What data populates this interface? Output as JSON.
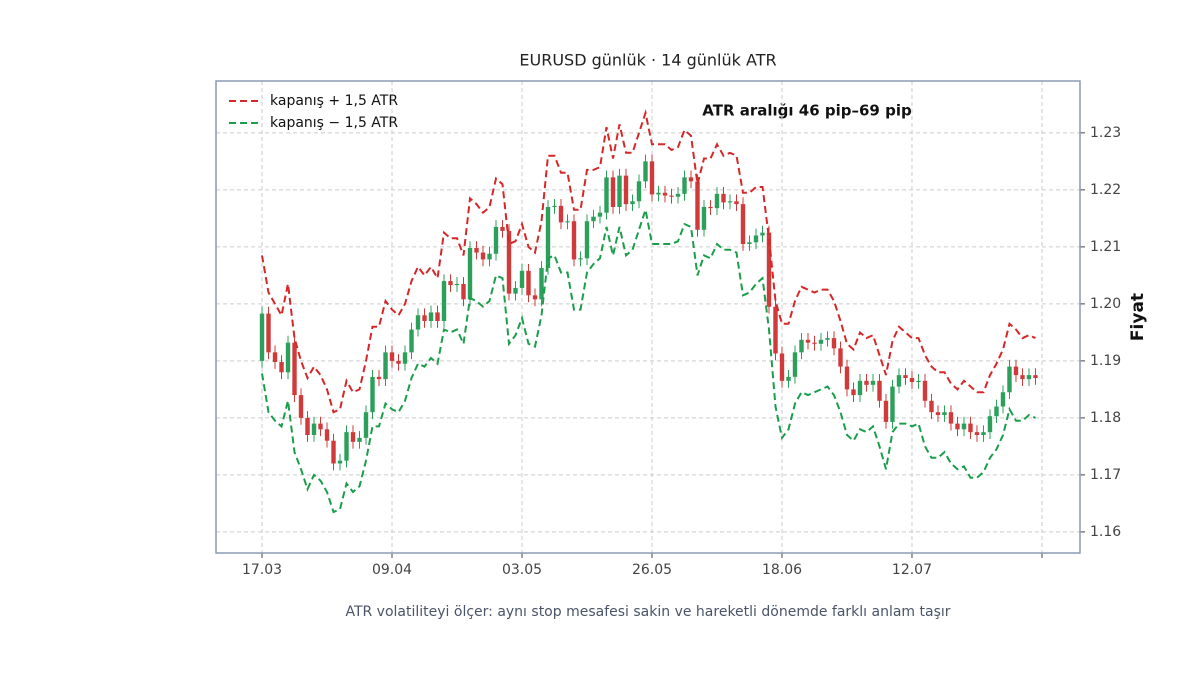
{
  "chart_data": {
    "type": "candlestick",
    "title": "EURUSD günlük · 14 günlük ATR",
    "ylabel": "Fiyat",
    "annotation": "ATR aralığı 46 pip–69 pip",
    "caption": "ATR volatiliteyi ölçer: aynı stop mesafesi sakin ve hareketli dönemde farklı anlam taşır",
    "up_color": "#2ca05a",
    "down_color": "#d03a3a",
    "grid": true,
    "legend": "upper left",
    "categories": [
      "17.03",
      null,
      null,
      null,
      null,
      null,
      null,
      null,
      null,
      null,
      null,
      null,
      null,
      null,
      null,
      null,
      null,
      null,
      null,
      null,
      "09.04",
      null,
      null,
      null,
      null,
      null,
      null,
      null,
      null,
      null,
      null,
      null,
      null,
      null,
      null,
      null,
      null,
      null,
      null,
      null,
      "03.05",
      null,
      null,
      null,
      null,
      null,
      null,
      null,
      null,
      null,
      null,
      null,
      null,
      null,
      null,
      null,
      null,
      null,
      null,
      null,
      "26.05",
      null,
      null,
      null,
      null,
      null,
      null,
      null,
      null,
      null,
      null,
      null,
      null,
      null,
      null,
      null,
      null,
      null,
      null,
      null,
      "18.06",
      null,
      null,
      null,
      null,
      null,
      null,
      null,
      null,
      null,
      null,
      null,
      null,
      null,
      null,
      null,
      null,
      null,
      null,
      null,
      "12.07",
      null,
      null,
      null,
      null,
      null,
      null,
      null,
      null,
      null,
      null,
      null,
      null,
      null,
      null,
      null,
      null,
      null,
      null,
      null
    ],
    "xlim": [
      -7.08,
      125.85
    ],
    "xticks": [
      0,
      20,
      40,
      60,
      80,
      100,
      120
    ],
    "ylim": [
      1.1563,
      1.2391
    ],
    "yticks": [
      1.16,
      1.17,
      1.18,
      1.19,
      {
        "value": 1.2,
        "label": "1.20"
      },
      1.21,
      1.22,
      1.23
    ],
    "open": [
      1.19,
      1.1983,
      1.1915,
      1.1898,
      1.188,
      1.1932,
      1.184,
      1.18,
      1.177,
      1.179,
      1.178,
      1.176,
      1.172,
      1.1725,
      1.1775,
      1.1758,
      1.1765,
      1.181,
      1.1872,
      1.1868,
      1.1915,
      1.19,
      1.1895,
      1.1915,
      1.1955,
      1.198,
      1.197,
      1.1985,
      1.197,
      1.204,
      1.2033,
      1.2035,
      1.2008,
      1.2098,
      1.209,
      1.2078,
      1.2088,
      1.2135,
      1.2128,
      1.2018,
      1.2028,
      1.2058,
      1.2015,
      1.2008,
      1.2063,
      1.217,
      1.2172,
      1.2143,
      1.2145,
      1.2078,
      1.208,
      1.2145,
      1.2153,
      1.216,
      1.2222,
      1.217,
      1.2225,
      1.2175,
      1.218,
      1.2215,
      1.225,
      1.2192,
      1.2195,
      1.219,
      1.2188,
      1.2193,
      1.2222,
      1.2215,
      1.213,
      1.217,
      1.2168,
      1.2193,
      1.2178,
      1.218,
      1.2175,
      1.2105,
      1.2108,
      1.212,
      1.2125,
      1.1995,
      1.1913,
      1.1865,
      1.1872,
      1.1915,
      1.1937,
      1.1932,
      1.193,
      1.1937,
      1.194,
      1.1922,
      1.189,
      1.185,
      1.184,
      1.1865,
      1.1858,
      1.1865,
      1.183,
      1.1793,
      1.1855,
      1.1875,
      1.187,
      1.1863,
      1.1865,
      1.183,
      1.181,
      1.1805,
      1.181,
      1.179,
      1.178,
      1.179,
      1.1775,
      1.177,
      1.1775,
      1.1803,
      1.182,
      1.1845,
      1.189,
      1.1875,
      1.1868,
      1.1875
    ],
    "high": [
      1.1995,
      1.1995,
      1.1927,
      1.191,
      1.1944,
      1.1944,
      1.1852,
      1.1812,
      1.1802,
      1.1802,
      1.1792,
      1.1772,
      1.1737,
      1.1787,
      1.1787,
      1.1777,
      1.1822,
      1.1884,
      1.1884,
      1.1927,
      1.1927,
      1.1912,
      1.1927,
      1.1967,
      1.1992,
      1.1992,
      1.1997,
      1.1997,
      1.2052,
      1.2052,
      1.2047,
      1.2047,
      1.211,
      1.211,
      1.2102,
      1.21,
      1.2147,
      1.2147,
      1.214,
      1.204,
      1.207,
      1.207,
      1.2027,
      1.2075,
      1.2182,
      1.2184,
      1.2184,
      1.2157,
      1.2157,
      1.2092,
      1.2157,
      1.2165,
      1.2172,
      1.2234,
      1.2234,
      1.2237,
      1.2237,
      1.2192,
      1.2227,
      1.2262,
      1.2262,
      1.2207,
      1.2207,
      1.2202,
      1.2205,
      1.2234,
      1.2234,
      1.2227,
      1.2182,
      1.2182,
      1.2205,
      1.2205,
      1.2192,
      1.2192,
      1.2187,
      1.212,
      1.2132,
      1.2137,
      1.2137,
      1.2007,
      1.1925,
      1.1884,
      1.1927,
      1.1949,
      1.1949,
      1.1944,
      1.1949,
      1.1952,
      1.1952,
      1.1934,
      1.1902,
      1.1862,
      1.1877,
      1.1877,
      1.1877,
      1.1877,
      1.1842,
      1.1867,
      1.1887,
      1.1887,
      1.1882,
      1.1877,
      1.1877,
      1.1842,
      1.1822,
      1.1822,
      1.1822,
      1.1802,
      1.1802,
      1.1802,
      1.1787,
      1.1787,
      1.1815,
      1.1832,
      1.1857,
      1.1902,
      1.1902,
      1.1887,
      1.1887,
      1.1887
    ],
    "low": [
      1.1888,
      1.1903,
      1.1886,
      1.1868,
      1.1868,
      1.1828,
      1.1788,
      1.1758,
      1.1758,
      1.1768,
      1.1748,
      1.1708,
      1.1708,
      1.1713,
      1.1746,
      1.1746,
      1.1753,
      1.1798,
      1.1856,
      1.1856,
      1.1888,
      1.1883,
      1.1883,
      1.1903,
      1.1943,
      1.1958,
      1.1958,
      1.1958,
      1.1958,
      1.2021,
      1.2021,
      1.1996,
      1.1996,
      1.2078,
      1.2066,
      1.2066,
      1.2076,
      1.2116,
      1.2006,
      1.2006,
      1.2016,
      1.2003,
      1.1996,
      1.1996,
      1.2051,
      1.2158,
      1.2131,
      1.2131,
      1.2066,
      1.2066,
      1.2068,
      1.2133,
      1.2141,
      1.2148,
      1.2158,
      1.2158,
      1.2163,
      1.2163,
      1.2168,
      1.2203,
      1.218,
      1.218,
      1.2178,
      1.2176,
      1.2176,
      1.2181,
      1.2203,
      1.2118,
      1.2118,
      1.2156,
      1.2156,
      1.2166,
      1.2166,
      1.2163,
      1.2093,
      1.2093,
      1.2096,
      1.2108,
      1.1983,
      1.1901,
      1.1853,
      1.1853,
      1.186,
      1.1903,
      1.192,
      1.1918,
      1.1918,
      1.1925,
      1.191,
      1.1878,
      1.1838,
      1.1828,
      1.1828,
      1.1846,
      1.1846,
      1.1818,
      1.1781,
      1.1781,
      1.1843,
      1.1858,
      1.1851,
      1.1851,
      1.1818,
      1.1798,
      1.1793,
      1.1793,
      1.1778,
      1.1768,
      1.1768,
      1.1763,
      1.1758,
      1.1758,
      1.1763,
      1.1791,
      1.1808,
      1.1833,
      1.1863,
      1.1856,
      1.1856,
      1.1858
    ],
    "close": [
      1.1983,
      1.1915,
      1.1898,
      1.188,
      1.1932,
      1.184,
      1.18,
      1.177,
      1.179,
      1.178,
      1.176,
      1.172,
      1.1725,
      1.1775,
      1.1758,
      1.1765,
      1.181,
      1.1872,
      1.1868,
      1.1915,
      1.19,
      1.1895,
      1.1915,
      1.1955,
      1.198,
      1.197,
      1.1985,
      1.197,
      1.204,
      1.2033,
      1.2035,
      1.2008,
      1.2098,
      1.209,
      1.2078,
      1.2088,
      1.2135,
      1.2128,
      1.2018,
      1.2028,
      1.2058,
      1.2015,
      1.2008,
      1.2063,
      1.217,
      1.2172,
      1.2143,
      1.2145,
      1.2078,
      1.208,
      1.2145,
      1.2153,
      1.216,
      1.2222,
      1.217,
      1.2225,
      1.2175,
      1.218,
      1.2215,
      1.225,
      1.2192,
      1.2195,
      1.219,
      1.2188,
      1.2193,
      1.2222,
      1.2215,
      1.213,
      1.217,
      1.2168,
      1.2193,
      1.2178,
      1.218,
      1.2175,
      1.2105,
      1.2108,
      1.212,
      1.2125,
      1.1995,
      1.1913,
      1.1865,
      1.1872,
      1.1915,
      1.1937,
      1.1932,
      1.193,
      1.1937,
      1.194,
      1.1922,
      1.189,
      1.185,
      1.184,
      1.1865,
      1.1858,
      1.1865,
      1.183,
      1.1793,
      1.1855,
      1.1875,
      1.187,
      1.1863,
      1.1865,
      1.183,
      1.181,
      1.1805,
      1.181,
      1.179,
      1.178,
      1.179,
      1.1775,
      1.177,
      1.1775,
      1.1803,
      1.182,
      1.1845,
      1.189,
      1.1875,
      1.1868,
      1.1875,
      1.187
    ],
    "series": [
      {
        "name": "kapanış + 1,5 ATR",
        "color": "#d62728",
        "values": [
          1.2085,
          1.202,
          1.2,
          1.198,
          1.2035,
          1.194,
          1.19,
          1.187,
          1.189,
          1.1875,
          1.185,
          1.181,
          1.1815,
          1.1865,
          1.1845,
          1.185,
          1.19,
          1.196,
          1.196,
          1.2005,
          1.199,
          1.198,
          1.2,
          1.204,
          1.2065,
          1.205,
          1.2065,
          1.2045,
          1.2125,
          1.2115,
          1.2115,
          1.2085,
          1.2185,
          1.2175,
          1.216,
          1.217,
          1.222,
          1.221,
          1.2105,
          1.211,
          1.214,
          1.21,
          1.209,
          1.2145,
          1.226,
          1.226,
          1.223,
          1.223,
          1.2165,
          1.2165,
          1.2235,
          1.2235,
          1.224,
          1.231,
          1.2255,
          1.2315,
          1.2265,
          1.2265,
          1.23,
          1.2335,
          1.228,
          1.228,
          1.228,
          1.227,
          1.2275,
          1.2305,
          1.2295,
          1.221,
          1.2255,
          1.2255,
          1.228,
          1.226,
          1.2265,
          1.226,
          1.2195,
          1.2195,
          1.2205,
          1.2205,
          1.2115,
          1.2005,
          1.1965,
          1.1965,
          1.2005,
          1.203,
          1.2025,
          1.202,
          1.2025,
          1.2025,
          1.2005,
          1.197,
          1.193,
          1.192,
          1.195,
          1.194,
          1.1945,
          1.191,
          1.1875,
          1.1935,
          1.196,
          1.195,
          1.194,
          1.194,
          1.191,
          1.189,
          1.188,
          1.188,
          1.186,
          1.185,
          1.1865,
          1.1855,
          1.1845,
          1.1845,
          1.1875,
          1.1895,
          1.192,
          1.1965,
          1.1955,
          1.194,
          1.1945,
          1.194
        ]
      },
      {
        "name": "kapanış − 1,5 ATR",
        "color": "#1a9e4a",
        "values": [
          1.1878,
          1.181,
          1.1795,
          1.1785,
          1.183,
          1.174,
          1.171,
          1.1675,
          1.17,
          1.169,
          1.167,
          1.1635,
          1.164,
          1.1685,
          1.167,
          1.168,
          1.1725,
          1.1785,
          1.1785,
          1.1825,
          1.1815,
          1.181,
          1.183,
          1.187,
          1.1895,
          1.189,
          1.1905,
          1.1895,
          1.1955,
          1.195,
          1.1955,
          1.193,
          1.201,
          1.2005,
          1.1995,
          1.2005,
          1.205,
          1.2045,
          1.193,
          1.1945,
          1.1975,
          1.193,
          1.1925,
          1.198,
          1.208,
          1.2085,
          1.2055,
          1.2055,
          1.199,
          1.199,
          1.2055,
          1.207,
          1.208,
          1.2135,
          1.2085,
          1.2135,
          1.2085,
          1.2095,
          1.213,
          1.2165,
          1.2105,
          1.2105,
          1.2105,
          1.2105,
          1.211,
          1.214,
          1.2135,
          1.205,
          1.2085,
          1.208,
          1.2105,
          1.2095,
          1.2095,
          1.209,
          1.2015,
          1.202,
          1.2035,
          1.2045,
          1.1955,
          1.182,
          1.1765,
          1.178,
          1.1825,
          1.1845,
          1.184,
          1.1845,
          1.185,
          1.1855,
          1.184,
          1.181,
          1.177,
          1.176,
          1.178,
          1.1775,
          1.1785,
          1.175,
          1.171,
          1.1775,
          1.179,
          1.179,
          1.1785,
          1.179,
          1.175,
          1.173,
          1.173,
          1.174,
          1.172,
          1.171,
          1.1715,
          1.1695,
          1.1695,
          1.1705,
          1.173,
          1.1745,
          1.177,
          1.1815,
          1.1795,
          1.1795,
          1.1805,
          1.18
        ]
      }
    ]
  }
}
